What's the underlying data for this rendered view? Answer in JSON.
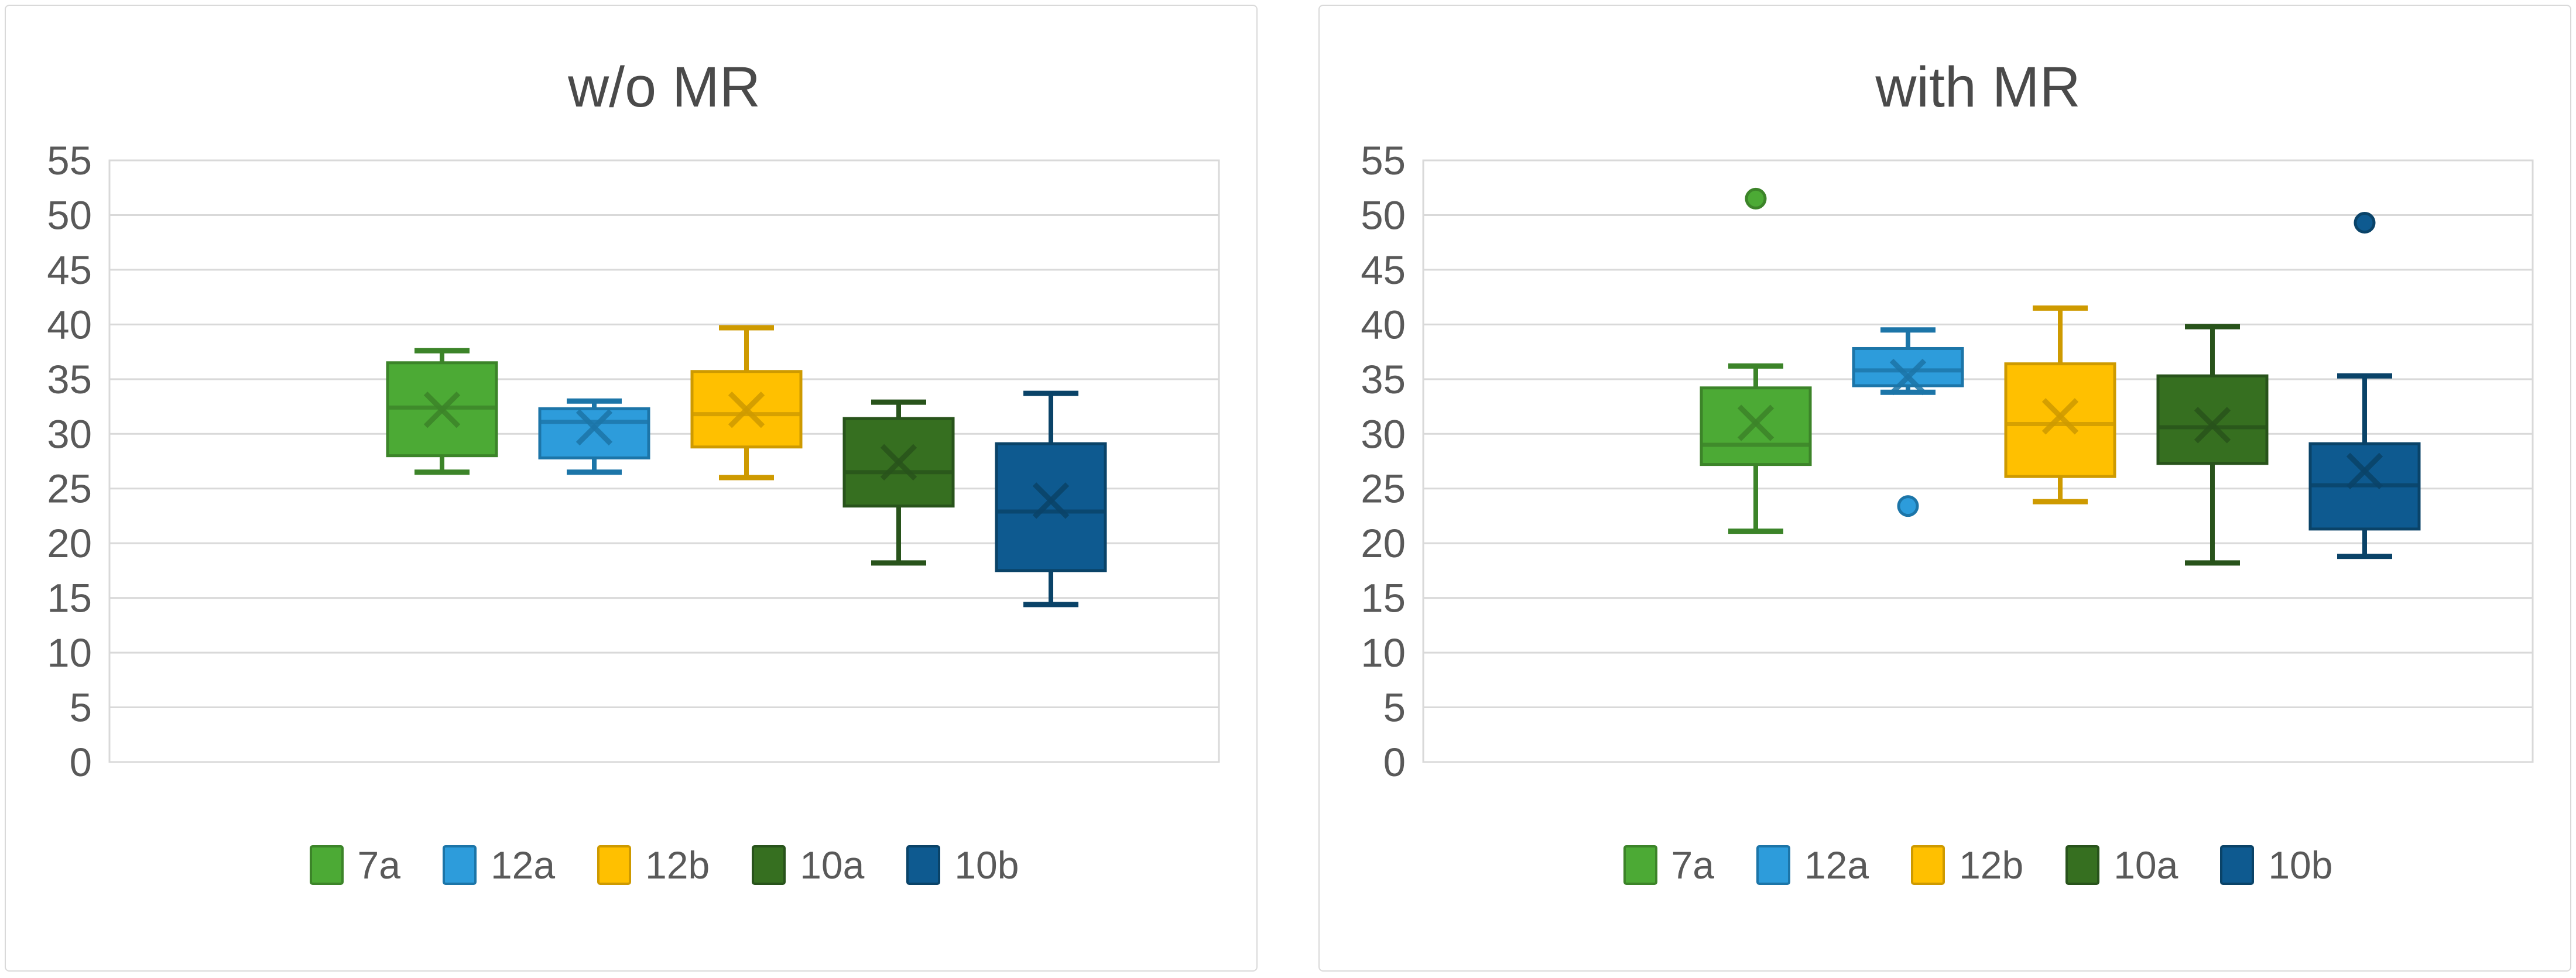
{
  "page_title": "Box plot comparison w/o MR vs with MR",
  "colors": {
    "background": "#ffffff",
    "panel_border": "#d9d9d9",
    "gridline": "#d9d9d9",
    "axis_text": "#595959",
    "title_text": "#4a4a4a",
    "legend_text": "#595959"
  },
  "chart_data": [
    {
      "type": "box",
      "title": "w/o MR",
      "xlabel": "",
      "ylabel": "",
      "ylim": [
        0,
        55
      ],
      "ytick_step": 5,
      "yticks": [
        "55",
        "50",
        "45",
        "40",
        "35",
        "30",
        "25",
        "20",
        "15",
        "10",
        "5",
        "0"
      ],
      "grid": true,
      "legend_position": "bottom",
      "legend_entries": [
        "7a",
        "12a",
        "12b",
        "10a",
        "10b"
      ],
      "series": [
        {
          "name": "7a",
          "fill": "#4CAA35",
          "stroke": "#3C8429",
          "min": 26.5,
          "q1": 28.0,
          "median": 32.4,
          "q3": 36.5,
          "max": 37.6,
          "mean": 32.2,
          "outliers": []
        },
        {
          "name": "12a",
          "fill": "#2D9CDB",
          "stroke": "#1C75A8",
          "min": 26.5,
          "q1": 27.8,
          "median": 31.1,
          "q3": 32.3,
          "max": 33.0,
          "mean": 30.6,
          "outliers": []
        },
        {
          "name": "12b",
          "fill": "#FFC000",
          "stroke": "#CE9A00",
          "min": 26.0,
          "q1": 28.8,
          "median": 31.8,
          "q3": 35.7,
          "max": 39.7,
          "mean": 32.2,
          "outliers": []
        },
        {
          "name": "10a",
          "fill": "#366F20",
          "stroke": "#28531B",
          "min": 18.2,
          "q1": 23.4,
          "median": 26.5,
          "q3": 31.4,
          "max": 32.9,
          "mean": 27.4,
          "outliers": []
        },
        {
          "name": "10b",
          "fill": "#0E5A90",
          "stroke": "#0A4368",
          "min": 14.4,
          "q1": 17.5,
          "median": 22.9,
          "q3": 29.1,
          "max": 33.7,
          "mean": 23.9,
          "outliers": []
        }
      ]
    },
    {
      "type": "box",
      "title": "with MR",
      "xlabel": "",
      "ylabel": "",
      "ylim": [
        0,
        55
      ],
      "ytick_step": 5,
      "yticks": [
        "55",
        "50",
        "45",
        "40",
        "35",
        "30",
        "25",
        "20",
        "15",
        "10",
        "5",
        "0"
      ],
      "grid": true,
      "legend_position": "bottom",
      "legend_entries": [
        "7a",
        "12a",
        "12b",
        "10a",
        "10b"
      ],
      "series": [
        {
          "name": "7a",
          "fill": "#4CAA35",
          "stroke": "#3C8429",
          "min": 21.1,
          "q1": 27.2,
          "median": 29.0,
          "q3": 34.2,
          "max": 36.2,
          "mean": 31.0,
          "outliers": [
            51.5
          ]
        },
        {
          "name": "12a",
          "fill": "#2D9CDB",
          "stroke": "#1C75A8",
          "min": 33.8,
          "q1": 34.4,
          "median": 35.8,
          "q3": 37.8,
          "max": 39.5,
          "mean": 35.2,
          "outliers": [
            23.4
          ]
        },
        {
          "name": "12b",
          "fill": "#FFC000",
          "stroke": "#CE9A00",
          "min": 23.8,
          "q1": 26.1,
          "median": 30.9,
          "q3": 36.4,
          "max": 41.5,
          "mean": 31.6,
          "outliers": []
        },
        {
          "name": "10a",
          "fill": "#366F20",
          "stroke": "#28531B",
          "min": 18.2,
          "q1": 27.3,
          "median": 30.6,
          "q3": 35.3,
          "max": 39.8,
          "mean": 30.8,
          "outliers": []
        },
        {
          "name": "10b",
          "fill": "#0E5A90",
          "stroke": "#0A4368",
          "min": 18.8,
          "q1": 21.3,
          "median": 25.3,
          "q3": 29.1,
          "max": 35.3,
          "mean": 26.6,
          "outliers": [
            49.3
          ]
        }
      ]
    }
  ]
}
